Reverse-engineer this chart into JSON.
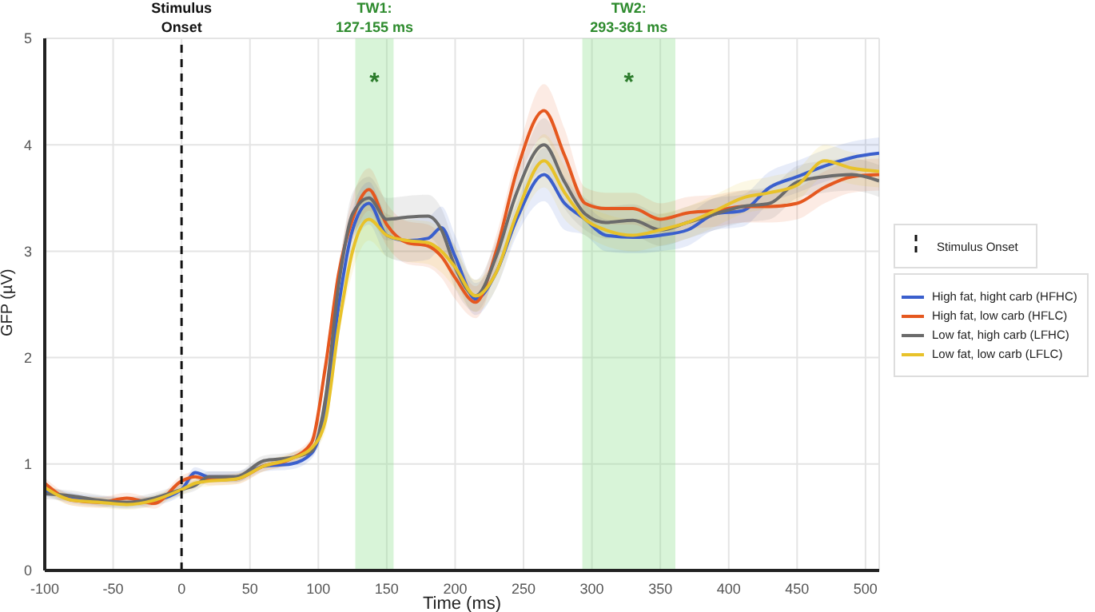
{
  "chart_data": {
    "type": "line",
    "xlabel": "Time (ms)",
    "ylabel": "GFP (µV)",
    "x": [
      -100,
      -80,
      -60,
      -40,
      -20,
      0,
      10,
      20,
      40,
      60,
      80,
      95,
      105,
      115,
      125,
      137,
      150,
      165,
      180,
      190,
      200,
      215,
      230,
      245,
      265,
      280,
      295,
      310,
      330,
      350,
      370,
      390,
      410,
      430,
      450,
      470,
      490,
      510
    ],
    "xlim": [
      -100,
      510
    ],
    "xticks": [
      -100,
      -50,
      0,
      50,
      100,
      150,
      200,
      250,
      300,
      350,
      400,
      450,
      500
    ],
    "ylim": [
      0,
      5
    ],
    "yticks": [
      0,
      1,
      2,
      3,
      4,
      5
    ],
    "grid": true,
    "legend": "right",
    "line_style": "solid",
    "marker": "none",
    "series": [
      {
        "name": "High fat, hight carb (HFHC)",
        "color": "#3a5fcd",
        "values": [
          0.75,
          0.68,
          0.65,
          0.63,
          0.66,
          0.76,
          0.92,
          0.88,
          0.88,
          0.98,
          1.0,
          1.1,
          1.5,
          2.5,
          3.2,
          3.45,
          3.15,
          3.1,
          3.12,
          3.22,
          2.95,
          2.55,
          2.8,
          3.3,
          3.72,
          3.45,
          3.3,
          3.15,
          3.13,
          3.15,
          3.2,
          3.35,
          3.38,
          3.6,
          3.7,
          3.8,
          3.88,
          3.92
        ],
        "lower": [
          0.7,
          0.63,
          0.6,
          0.58,
          0.61,
          0.71,
          0.87,
          0.83,
          0.83,
          0.93,
          0.95,
          1.05,
          1.4,
          2.4,
          3.0,
          3.25,
          2.95,
          2.9,
          2.92,
          3.02,
          2.75,
          2.4,
          2.65,
          3.15,
          3.47,
          3.2,
          3.15,
          3.0,
          2.98,
          3.0,
          3.05,
          3.2,
          3.23,
          3.45,
          3.55,
          3.65,
          3.73,
          3.77
        ],
        "upper": [
          0.8,
          0.73,
          0.7,
          0.68,
          0.71,
          0.81,
          0.97,
          0.93,
          0.93,
          1.03,
          1.05,
          1.15,
          1.6,
          2.6,
          3.4,
          3.65,
          3.35,
          3.3,
          3.32,
          3.42,
          3.15,
          2.7,
          2.95,
          3.45,
          3.97,
          3.7,
          3.45,
          3.3,
          3.28,
          3.3,
          3.35,
          3.5,
          3.53,
          3.75,
          3.85,
          3.95,
          4.03,
          4.07
        ]
      },
      {
        "name": "High fat, low carb (HFLC)",
        "color": "#e5581f",
        "values": [
          0.82,
          0.66,
          0.64,
          0.68,
          0.63,
          0.84,
          0.88,
          0.85,
          0.86,
          0.98,
          1.05,
          1.2,
          1.9,
          2.8,
          3.3,
          3.58,
          3.25,
          3.08,
          3.05,
          2.95,
          2.75,
          2.52,
          3.0,
          3.75,
          4.32,
          3.9,
          3.45,
          3.4,
          3.4,
          3.3,
          3.36,
          3.38,
          3.42,
          3.42,
          3.45,
          3.6,
          3.7,
          3.72
        ],
        "lower": [
          0.77,
          0.61,
          0.59,
          0.63,
          0.58,
          0.79,
          0.83,
          0.8,
          0.81,
          0.93,
          1.0,
          1.15,
          1.8,
          2.7,
          3.1,
          3.38,
          3.05,
          2.88,
          2.85,
          2.75,
          2.55,
          2.37,
          2.85,
          3.6,
          4.07,
          3.65,
          3.3,
          3.25,
          3.25,
          3.15,
          3.21,
          3.23,
          3.27,
          3.27,
          3.3,
          3.45,
          3.55,
          3.57
        ],
        "upper": [
          0.87,
          0.71,
          0.69,
          0.73,
          0.68,
          0.89,
          0.93,
          0.9,
          0.91,
          1.03,
          1.1,
          1.25,
          2.0,
          2.9,
          3.5,
          3.78,
          3.45,
          3.28,
          3.25,
          3.15,
          2.95,
          2.67,
          3.15,
          3.9,
          4.57,
          4.15,
          3.6,
          3.55,
          3.55,
          3.45,
          3.51,
          3.53,
          3.57,
          3.57,
          3.6,
          3.75,
          3.85,
          3.87
        ]
      },
      {
        "name": "Low fat, high carb (LFHC)",
        "color": "#6b6b6b",
        "values": [
          0.72,
          0.7,
          0.66,
          0.64,
          0.68,
          0.76,
          0.8,
          0.88,
          0.88,
          1.03,
          1.06,
          1.12,
          1.6,
          2.7,
          3.35,
          3.5,
          3.3,
          3.32,
          3.33,
          3.2,
          2.85,
          2.58,
          2.95,
          3.55,
          4.0,
          3.65,
          3.35,
          3.27,
          3.29,
          3.2,
          3.27,
          3.35,
          3.42,
          3.45,
          3.65,
          3.7,
          3.72,
          3.66
        ],
        "lower": [
          0.67,
          0.65,
          0.61,
          0.59,
          0.63,
          0.71,
          0.75,
          0.83,
          0.83,
          0.98,
          1.01,
          1.07,
          1.5,
          2.6,
          3.15,
          3.3,
          3.1,
          3.12,
          3.13,
          3.0,
          2.65,
          2.43,
          2.8,
          3.4,
          3.75,
          3.4,
          3.2,
          3.12,
          3.14,
          3.05,
          3.12,
          3.2,
          3.27,
          3.3,
          3.5,
          3.55,
          3.57,
          3.51
        ],
        "upper": [
          0.77,
          0.75,
          0.71,
          0.69,
          0.73,
          0.81,
          0.85,
          0.93,
          0.93,
          1.08,
          1.11,
          1.17,
          1.7,
          2.8,
          3.55,
          3.7,
          3.5,
          3.52,
          3.53,
          3.4,
          3.05,
          2.73,
          3.1,
          3.7,
          4.25,
          3.9,
          3.5,
          3.42,
          3.44,
          3.35,
          3.42,
          3.5,
          3.57,
          3.6,
          3.8,
          3.85,
          3.87,
          3.81
        ]
      },
      {
        "name": "Low fat, low carb (LFLC)",
        "color": "#e8c22a",
        "values": [
          0.78,
          0.66,
          0.64,
          0.62,
          0.66,
          0.76,
          0.82,
          0.84,
          0.86,
          0.98,
          1.05,
          1.15,
          1.4,
          2.3,
          3.0,
          3.3,
          3.15,
          3.1,
          3.08,
          3.0,
          2.85,
          2.58,
          2.8,
          3.35,
          3.85,
          3.55,
          3.3,
          3.2,
          3.15,
          3.2,
          3.27,
          3.38,
          3.5,
          3.55,
          3.62,
          3.85,
          3.78,
          3.75
        ],
        "lower": [
          0.73,
          0.61,
          0.59,
          0.57,
          0.61,
          0.71,
          0.77,
          0.79,
          0.81,
          0.93,
          1.0,
          1.1,
          1.3,
          2.2,
          2.8,
          3.1,
          2.95,
          2.9,
          2.88,
          2.8,
          2.65,
          2.43,
          2.65,
          3.2,
          3.6,
          3.3,
          3.15,
          3.05,
          3.0,
          3.05,
          3.12,
          3.23,
          3.35,
          3.4,
          3.47,
          3.7,
          3.63,
          3.6
        ],
        "upper": [
          0.83,
          0.71,
          0.69,
          0.67,
          0.71,
          0.81,
          0.87,
          0.89,
          0.91,
          1.03,
          1.1,
          1.2,
          1.5,
          2.4,
          3.2,
          3.5,
          3.35,
          3.3,
          3.28,
          3.2,
          3.05,
          2.73,
          2.95,
          3.5,
          4.1,
          3.8,
          3.45,
          3.35,
          3.3,
          3.35,
          3.42,
          3.53,
          3.65,
          3.7,
          3.77,
          4.0,
          3.93,
          3.9
        ]
      }
    ],
    "ref_lines": [
      {
        "axis": "x",
        "value": 0,
        "label": "Stimulus\nOnset",
        "color": "#111111",
        "line_style": "dashed"
      }
    ],
    "bands": [
      {
        "axis": "x",
        "from": 127,
        "to": 155,
        "label": "TW1:\n127-155 ms",
        "color": "#90e090"
      },
      {
        "axis": "x",
        "from": 293,
        "to": 361,
        "label": "TW2:\n293-361 ms",
        "color": "#90e090"
      }
    ],
    "annotations": [
      "*",
      "*"
    ]
  }
}
